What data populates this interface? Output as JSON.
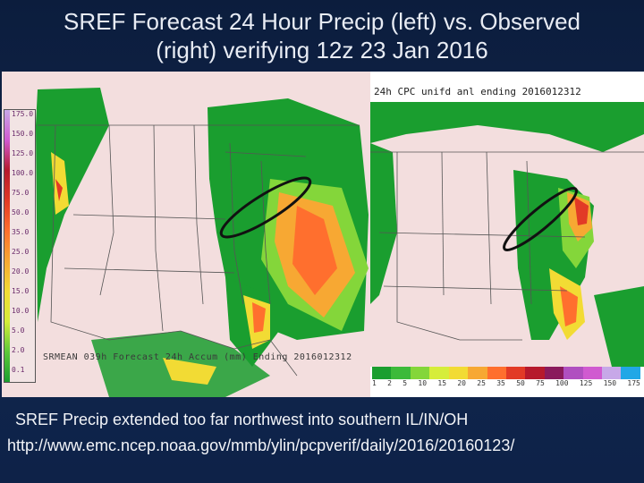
{
  "slide": {
    "title_line1": "SREF Forecast 24 Hour Precip (left) vs. Observed",
    "title_line2": "(right) verifying 12z 23 Jan 2016",
    "caption": "SREF Precip extended too far northwest into southern IL/IN/OH",
    "url": "http://www.emc.ncep.noaa.gov/mmb/ylin/pcpverif/daily/2016/20160123/"
  },
  "left_map": {
    "caption": "SRMEAN 039h Forecast 24h Accum (mm) Ending 2016012312",
    "colorbar_labels": [
      "175.0",
      "150.0",
      "125.0",
      "100.0",
      "75.0",
      "50.0",
      "35.0",
      "25.0",
      "20.0",
      "15.0",
      "10.0",
      "5.0",
      "2.0",
      "0.1"
    ]
  },
  "right_map": {
    "header": "24h CPC unifd anl ending 2016012312",
    "legend_ticks": [
      "1",
      "2",
      "5",
      "10",
      "15",
      "20",
      "25",
      "35",
      "50",
      "75",
      "100",
      "125",
      "150",
      "175"
    ],
    "legend_colors": [
      "#1a9e2f",
      "#3cba3a",
      "#84d63a",
      "#d6ed3a",
      "#f2db34",
      "#f7a833",
      "#ff6f2e",
      "#e23a26",
      "#b6192c",
      "#8a1a5c",
      "#b04fc0",
      "#d05ad0",
      "#c7a8e8",
      "#21a7e6"
    ]
  },
  "colors": {
    "background": "#0f2244",
    "text": "#e8ecf4",
    "land": "#f3dede",
    "light_precip": "#1a9e2f",
    "heavy_precip": "#ff6f2e"
  }
}
